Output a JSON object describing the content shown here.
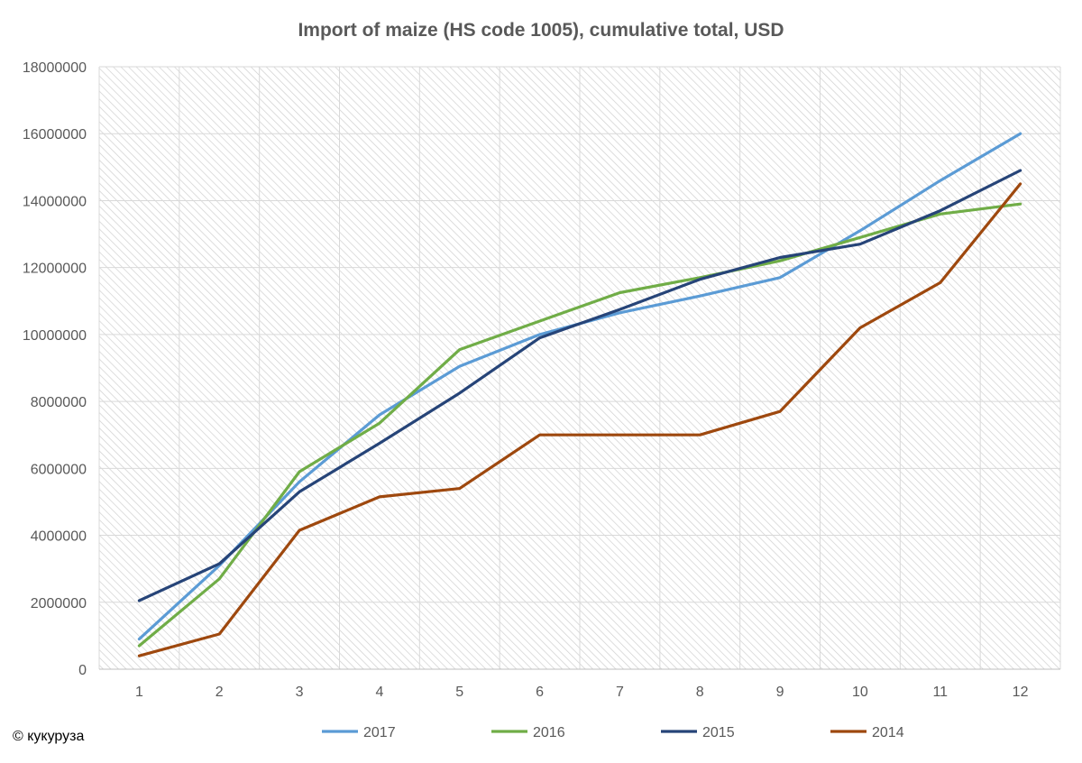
{
  "copyright": "© кукуруза",
  "colors": {
    "background": "#ffffff",
    "grid": "#d9d9d9",
    "hatch": "#d0d0d0",
    "title": "#595959",
    "tick_label": "#595959"
  },
  "chart_data": {
    "type": "line",
    "title": "Import of maize (HS code 1005), cumulative total, USD",
    "xlabel": "",
    "ylabel": "",
    "x": [
      1,
      2,
      3,
      4,
      5,
      6,
      7,
      8,
      9,
      10,
      11,
      12
    ],
    "x_tick_labels": [
      "1",
      "2",
      "3",
      "4",
      "5",
      "6",
      "7",
      "8",
      "9",
      "10",
      "11",
      "12"
    ],
    "ylim": [
      0,
      18000000
    ],
    "y_ticks": [
      0,
      2000000,
      4000000,
      6000000,
      8000000,
      10000000,
      12000000,
      14000000,
      16000000,
      18000000
    ],
    "y_tick_labels": [
      "0",
      "2000000",
      "4000000",
      "6000000",
      "8000000",
      "10000000",
      "12000000",
      "14000000",
      "16000000",
      "18000000"
    ],
    "grid": true,
    "legend_position": "bottom",
    "series": [
      {
        "name": "2017",
        "color": "#5b9bd5",
        "values": [
          900000,
          3100000,
          5600000,
          7600000,
          9050000,
          10000000,
          10650000,
          11150000,
          11700000,
          13100000,
          14600000,
          16000000
        ]
      },
      {
        "name": "2016",
        "color": "#70ad47",
        "values": [
          700000,
          2700000,
          5900000,
          7350000,
          9550000,
          10400000,
          11250000,
          11700000,
          12200000,
          12900000,
          13600000,
          13900000
        ]
      },
      {
        "name": "2015",
        "color": "#264478",
        "values": [
          2050000,
          3150000,
          5300000,
          6750000,
          8250000,
          9900000,
          10750000,
          11650000,
          12300000,
          12700000,
          13700000,
          14900000
        ]
      },
      {
        "name": "2014",
        "color": "#9e480e",
        "values": [
          400000,
          1050000,
          4150000,
          5150000,
          5400000,
          7000000,
          7000000,
          7000000,
          7700000,
          10200000,
          11550000,
          14500000
        ]
      }
    ]
  }
}
